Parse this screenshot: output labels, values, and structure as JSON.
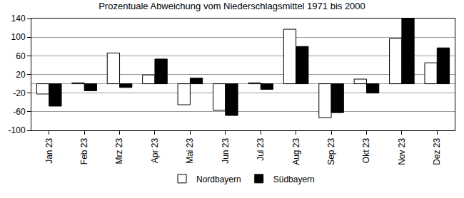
{
  "chart_data": {
    "type": "bar",
    "title": "Prozentuale Abweichung vom Niederschlagsmittel 1971 bis 2000",
    "categories": [
      "Jan 23",
      "Feb 23",
      "Mrz 23",
      "Apr 23",
      "Mai 23",
      "Jun 23",
      "Jul 23",
      "Aug 23",
      "Sep 23",
      "Okt 23",
      "Nov 23",
      "Dez 23"
    ],
    "series": [
      {
        "name": "Nordbayern",
        "color": "#ffffff",
        "values": [
          -22,
          2,
          66,
          19,
          -45,
          -57,
          2,
          117,
          -73,
          10,
          97,
          45
        ]
      },
      {
        "name": "Südbayern",
        "color": "#000000",
        "values": [
          -48,
          -15,
          -8,
          53,
          12,
          -68,
          -12,
          80,
          -62,
          -20,
          140,
          77
        ]
      }
    ],
    "ylim": [
      -100,
      140
    ],
    "yticks": [
      -100,
      -60,
      -20,
      20,
      60,
      100,
      140
    ],
    "grid": true,
    "legend": "bottom"
  }
}
